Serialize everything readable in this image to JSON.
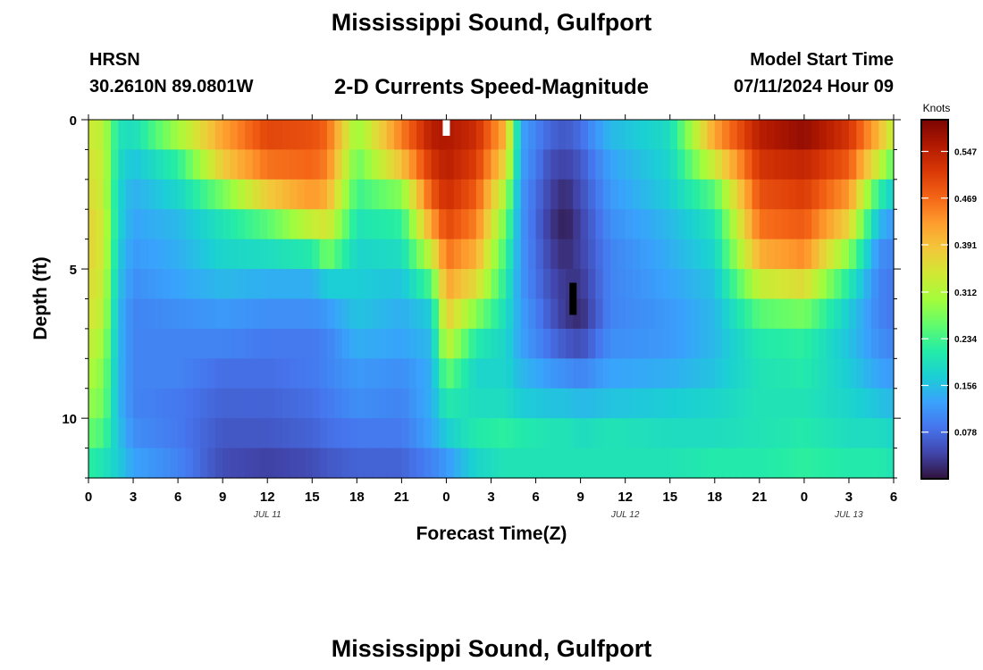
{
  "page": {
    "title_top": "Mississippi Sound, Gulfport",
    "title_bottom": "Mississippi Sound, Gulfport",
    "station": "HRSN",
    "coords": "30.2610N  89.0801W",
    "subtitle": "2-D Currents Speed-Magnitude",
    "model_start_label": "Model Start Time",
    "model_start_value": "07/11/2024 Hour 09"
  },
  "chart_data": {
    "type": "heatmap",
    "xlabel": "Forecast Time(Z)",
    "ylabel": "Depth (ft)",
    "x_tick_labels": [
      "0",
      "3",
      "6",
      "9",
      "12",
      "15",
      "18",
      "21",
      "0",
      "3",
      "6",
      "9",
      "12",
      "15",
      "18",
      "21",
      "0",
      "3",
      "6"
    ],
    "x_range_hours": [
      0,
      54
    ],
    "y_ticks": [
      0,
      5,
      10
    ],
    "y_range_ft": [
      0,
      12
    ],
    "y_inverted": true,
    "date_labels": [
      {
        "hour": 12,
        "text": "JUL 11"
      },
      {
        "hour": 36,
        "text": "JUL 12"
      },
      {
        "hour": 51,
        "text": "JUL 13"
      }
    ],
    "colorbar": {
      "title": "Knots",
      "ticks": [
        0.078,
        0.156,
        0.234,
        0.312,
        0.391,
        0.469,
        0.547
      ],
      "range": [
        0.0,
        0.6
      ],
      "colors": [
        "#30123b",
        "#4145ab",
        "#4675ed",
        "#39a2fc",
        "#1bcfd4",
        "#24eca6",
        "#61fc6c",
        "#a4fc3b",
        "#d1e834",
        "#f3c63a",
        "#fe9b2d",
        "#f36315",
        "#d93806",
        "#b11901",
        "#7a0403"
      ]
    },
    "depth_rows_ft": [
      0.5,
      1.5,
      2.5,
      3.5,
      4.5,
      5.5,
      6.5,
      7.5,
      8.5,
      9.5,
      10.5,
      11.5
    ],
    "series": [
      {
        "hour": 0,
        "speeds_knots": [
          0.34,
          0.35,
          0.36,
          0.37,
          0.37,
          0.36,
          0.35,
          0.33,
          0.31,
          0.29,
          0.26,
          0.22
        ]
      },
      {
        "hour": 1,
        "speeds_knots": [
          0.32,
          0.33,
          0.33,
          0.34,
          0.34,
          0.33,
          0.32,
          0.3,
          0.28,
          0.27,
          0.24,
          0.2
        ]
      },
      {
        "hour": 2,
        "speeds_knots": [
          0.2,
          0.19,
          0.18,
          0.18,
          0.17,
          0.16,
          0.15,
          0.15,
          0.15,
          0.15,
          0.16,
          0.17
        ]
      },
      {
        "hour": 3,
        "speeds_knots": [
          0.19,
          0.16,
          0.14,
          0.13,
          0.12,
          0.11,
          0.1,
          0.1,
          0.1,
          0.1,
          0.11,
          0.13
        ]
      },
      {
        "hour": 6,
        "speeds_knots": [
          0.3,
          0.22,
          0.18,
          0.15,
          0.14,
          0.13,
          0.11,
          0.1,
          0.1,
          0.09,
          0.09,
          0.1
        ]
      },
      {
        "hour": 9,
        "speeds_knots": [
          0.42,
          0.38,
          0.27,
          0.2,
          0.18,
          0.15,
          0.12,
          0.1,
          0.08,
          0.07,
          0.06,
          0.05
        ]
      },
      {
        "hour": 12,
        "speeds_knots": [
          0.5,
          0.46,
          0.38,
          0.25,
          0.19,
          0.14,
          0.11,
          0.09,
          0.08,
          0.07,
          0.06,
          0.04
        ]
      },
      {
        "hour": 15,
        "speeds_knots": [
          0.49,
          0.47,
          0.43,
          0.33,
          0.21,
          0.14,
          0.11,
          0.09,
          0.09,
          0.08,
          0.07,
          0.05
        ]
      },
      {
        "hour": 16,
        "speeds_knots": [
          0.47,
          0.45,
          0.41,
          0.35,
          0.27,
          0.17,
          0.12,
          0.1,
          0.1,
          0.09,
          0.08,
          0.06
        ]
      },
      {
        "hour": 18,
        "speeds_knots": [
          0.29,
          0.26,
          0.23,
          0.2,
          0.18,
          0.17,
          0.16,
          0.14,
          0.12,
          0.11,
          0.09,
          0.07
        ]
      },
      {
        "hour": 21,
        "speeds_knots": [
          0.45,
          0.39,
          0.28,
          0.22,
          0.19,
          0.16,
          0.14,
          0.13,
          0.11,
          0.1,
          0.09,
          0.07
        ]
      },
      {
        "hour": 23,
        "speeds_knots": [
          0.55,
          0.52,
          0.48,
          0.42,
          0.33,
          0.24,
          0.17,
          0.15,
          0.14,
          0.14,
          0.13,
          0.1
        ]
      },
      {
        "hour": 24,
        "speeds_knots": [
          0.56,
          0.55,
          0.53,
          0.5,
          0.46,
          0.42,
          0.38,
          0.33,
          0.26,
          0.21,
          0.17,
          0.12
        ]
      },
      {
        "hour": 26,
        "speeds_knots": [
          0.53,
          0.51,
          0.48,
          0.45,
          0.41,
          0.36,
          0.28,
          0.21,
          0.18,
          0.19,
          0.21,
          0.18
        ]
      },
      {
        "hour": 28,
        "speeds_knots": [
          0.4,
          0.36,
          0.3,
          0.26,
          0.23,
          0.21,
          0.19,
          0.18,
          0.18,
          0.19,
          0.22,
          0.2
        ]
      },
      {
        "hour": 29,
        "speeds_knots": [
          0.13,
          0.13,
          0.12,
          0.12,
          0.12,
          0.12,
          0.13,
          0.13,
          0.15,
          0.17,
          0.21,
          0.2
        ]
      },
      {
        "hour": 31,
        "speeds_knots": [
          0.07,
          0.05,
          0.04,
          0.03,
          0.04,
          0.05,
          0.06,
          0.08,
          0.12,
          0.16,
          0.2,
          0.2
        ]
      },
      {
        "hour": 32,
        "speeds_knots": [
          0.06,
          0.04,
          0.02,
          0.01,
          0.02,
          0.03,
          0.03,
          0.06,
          0.11,
          0.16,
          0.2,
          0.2
        ]
      },
      {
        "hour": 33,
        "speeds_knots": [
          0.08,
          0.06,
          0.05,
          0.04,
          0.04,
          0.03,
          0.02,
          0.05,
          0.1,
          0.15,
          0.19,
          0.2
        ]
      },
      {
        "hour": 35,
        "speeds_knots": [
          0.15,
          0.13,
          0.12,
          0.11,
          0.1,
          0.1,
          0.1,
          0.11,
          0.13,
          0.16,
          0.2,
          0.2
        ]
      },
      {
        "hour": 39,
        "speeds_knots": [
          0.19,
          0.18,
          0.17,
          0.15,
          0.14,
          0.13,
          0.12,
          0.12,
          0.14,
          0.17,
          0.19,
          0.2
        ]
      },
      {
        "hour": 42,
        "speeds_knots": [
          0.42,
          0.34,
          0.25,
          0.2,
          0.18,
          0.16,
          0.15,
          0.15,
          0.16,
          0.18,
          0.19,
          0.21
        ]
      },
      {
        "hour": 45,
        "speeds_knots": [
          0.55,
          0.52,
          0.49,
          0.46,
          0.41,
          0.33,
          0.25,
          0.21,
          0.2,
          0.2,
          0.2,
          0.21
        ]
      },
      {
        "hour": 48,
        "speeds_knots": [
          0.58,
          0.54,
          0.51,
          0.48,
          0.44,
          0.36,
          0.27,
          0.22,
          0.21,
          0.2,
          0.21,
          0.22
        ]
      },
      {
        "hour": 51,
        "speeds_knots": [
          0.52,
          0.48,
          0.43,
          0.37,
          0.28,
          0.21,
          0.17,
          0.16,
          0.17,
          0.18,
          0.19,
          0.21
        ]
      },
      {
        "hour": 53,
        "speeds_knots": [
          0.4,
          0.33,
          0.22,
          0.15,
          0.11,
          0.1,
          0.1,
          0.11,
          0.13,
          0.16,
          0.19,
          0.21
        ]
      },
      {
        "hour": 54,
        "speeds_knots": [
          0.32,
          0.25,
          0.17,
          0.12,
          0.1,
          0.09,
          0.09,
          0.1,
          0.12,
          0.15,
          0.18,
          0.2
        ]
      }
    ],
    "missing_cells": [
      {
        "hour": 24,
        "depth_ft": 0.25,
        "color": "#ffffff"
      },
      {
        "hour": 32.5,
        "depth_ft": 6.0,
        "color": "#000000"
      }
    ]
  }
}
